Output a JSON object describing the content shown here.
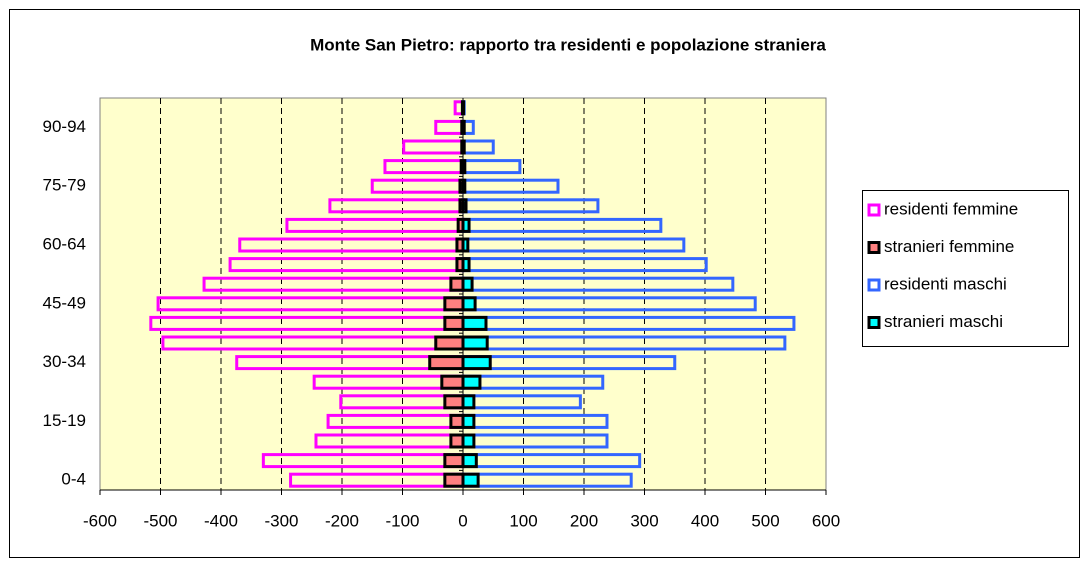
{
  "chart_data": {
    "type": "bar",
    "orientation": "horizontal",
    "title": "Monte San Pietro: rapporto tra residenti e popolazione straniera",
    "categories": [
      "0-4",
      null,
      null,
      "15-19",
      null,
      null,
      "30-34",
      null,
      null,
      "45-49",
      null,
      null,
      "60-64",
      null,
      null,
      "75-79",
      null,
      null,
      "90-94",
      null
    ],
    "series": [
      {
        "name": "residenti femmine",
        "color": "#ff00ff",
        "hollow": true,
        "values": [
          -285,
          -330,
          -243,
          -223,
          -202,
          -246,
          -374,
          -496,
          -516,
          -504,
          -428,
          -385,
          -369,
          -291,
          -220,
          -150,
          -129,
          -98,
          -45,
          -13
        ]
      },
      {
        "name": "stranieri femmine",
        "color": "#ff8080",
        "edgecolor": "#000000",
        "hollow": false,
        "values": [
          -30,
          -30,
          -20,
          -20,
          -30,
          -35,
          -55,
          -45,
          -30,
          -30,
          -20,
          -10,
          -10,
          -8,
          -5,
          -5,
          -3,
          -2,
          -2,
          -1
        ]
      },
      {
        "name": "residenti maschi",
        "color": "#3366ff",
        "hollow": true,
        "values": [
          278,
          292,
          238,
          238,
          194,
          231,
          350,
          532,
          547,
          483,
          446,
          402,
          365,
          327,
          223,
          157,
          94,
          50,
          17,
          2
        ]
      },
      {
        "name": "stranieri maschi",
        "color": "#00ffff",
        "edgecolor": "#000000",
        "hollow": false,
        "values": [
          25,
          22,
          18,
          18,
          18,
          28,
          45,
          40,
          38,
          20,
          15,
          10,
          8,
          10,
          5,
          3,
          3,
          2,
          2,
          1
        ]
      }
    ],
    "xlim": [
      -600,
      600
    ],
    "xticks": [
      -600,
      -500,
      -400,
      -300,
      -200,
      -100,
      0,
      100,
      200,
      300,
      400,
      500,
      600
    ],
    "grid": true,
    "legend": "right",
    "background": "#ffffcc"
  }
}
